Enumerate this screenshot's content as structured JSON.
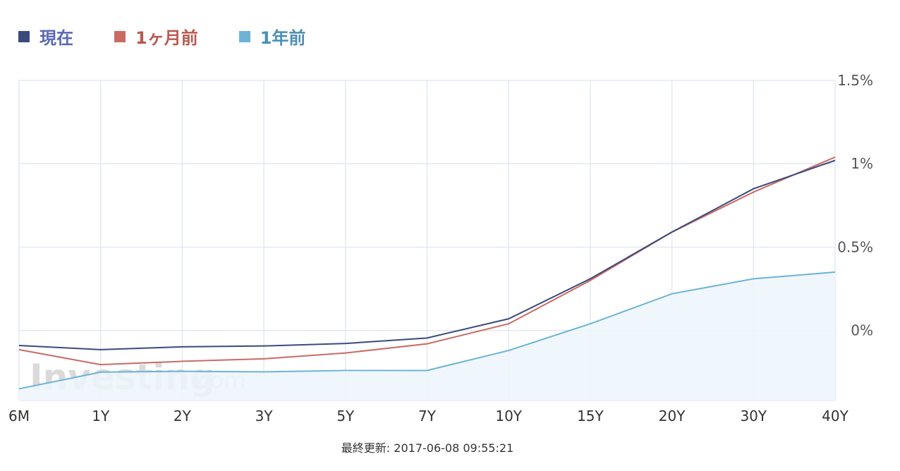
{
  "legend": {
    "items": [
      {
        "label": "現在",
        "color": "#3b4a7d",
        "text_color": "#5a67b3"
      },
      {
        "label": "1ヶ月前",
        "color": "#c86b63",
        "text_color": "#b85a52"
      },
      {
        "label": "1年前",
        "color": "#6cb3d6",
        "text_color": "#4a8fb3"
      }
    ]
  },
  "watermark": {
    "brand": "Investing",
    "suffix": ".com"
  },
  "footer": {
    "last_updated_label": "最終更新:",
    "last_updated_value": "2017-06-08 09:55:21"
  },
  "chart_data": {
    "type": "line",
    "categories": [
      "6M",
      "1Y",
      "2Y",
      "3Y",
      "5Y",
      "7Y",
      "10Y",
      "15Y",
      "20Y",
      "30Y",
      "40Y"
    ],
    "y_ticks": [
      {
        "value": 1.5,
        "label": "1.5%"
      },
      {
        "value": 1.0,
        "label": "1%"
      },
      {
        "value": 0.5,
        "label": "0.5%"
      },
      {
        "value": 0.0,
        "label": "0%"
      }
    ],
    "ylim": [
      -0.42,
      1.5
    ],
    "grid": true,
    "legend_position": "top-left",
    "y_axis_side": "right",
    "series": [
      {
        "name": "現在",
        "color": "#3b4a7d",
        "values": [
          -0.09,
          -0.115,
          -0.098,
          -0.093,
          -0.078,
          -0.045,
          0.07,
          0.31,
          0.59,
          0.85,
          1.02
        ]
      },
      {
        "name": "1ヶ月前",
        "color": "#c86b63",
        "values": [
          -0.115,
          -0.205,
          -0.185,
          -0.17,
          -0.135,
          -0.08,
          0.04,
          0.3,
          0.59,
          0.83,
          1.04
        ]
      },
      {
        "name": "1年前",
        "color": "#6cb3d6",
        "fill": "#edf6fc",
        "values": [
          -0.35,
          -0.25,
          -0.245,
          -0.248,
          -0.24,
          -0.24,
          -0.12,
          0.04,
          0.22,
          0.31,
          0.35
        ]
      }
    ]
  }
}
